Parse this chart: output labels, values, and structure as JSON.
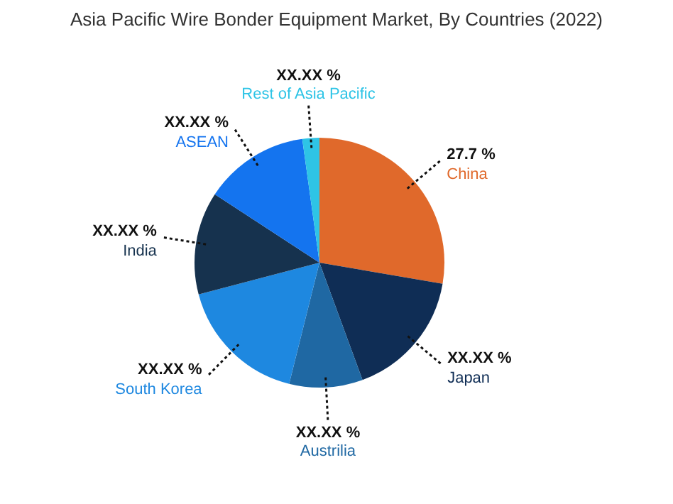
{
  "chart_data": {
    "type": "pie",
    "title": "Asia Pacific Wire Bonder Equipment Market, By Countries (2022)",
    "categories": [
      "China",
      "Japan",
      "Austrilia",
      "South Korea",
      "India",
      "ASEAN",
      "Rest of Asia Pacific"
    ],
    "values": [
      27.7,
      16.7,
      9.5,
      17,
      13.3,
      13.6,
      2.2
    ],
    "colors": [
      "#e0692b",
      "#0f2d55",
      "#1f68a3",
      "#1e88e0",
      "#16324e",
      "#1474ef",
      "#2ec4e6"
    ],
    "value_labels": [
      "27.7 %",
      "XX.XX %",
      "XX.XX %",
      "XX.XX %",
      "XX.XX %",
      "XX.XX %",
      "XX.XX %"
    ],
    "legend": false
  }
}
